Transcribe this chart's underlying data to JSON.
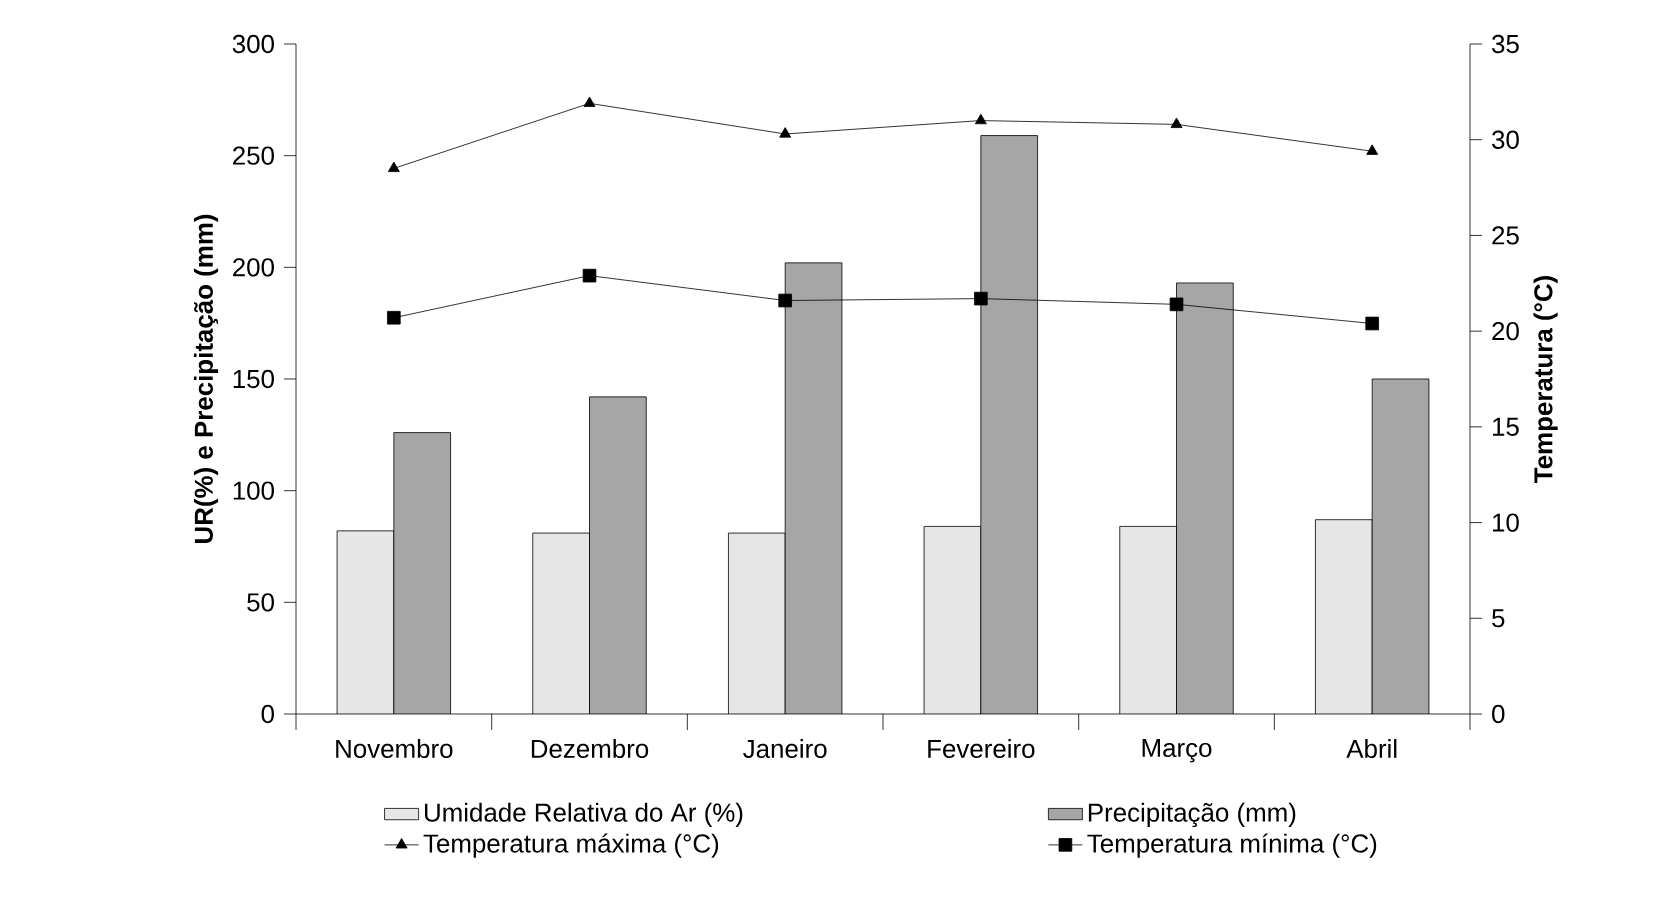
{
  "chart_data": {
    "type": "bar",
    "ylabel": "UR(%) e Precipitação (mm)",
    "y2label": "Temperatura (°C)",
    "categories": [
      "Novembro",
      "Dezembro",
      "Janeiro",
      "Fevereiro",
      "Março",
      "Abril"
    ],
    "series": [
      {
        "name": "Umidade Relativa do Ar (%)",
        "color": "#e6e6e6",
        "values": [
          82,
          81,
          81,
          84,
          84,
          87
        ]
      },
      {
        "name": "Precipitação (mm)",
        "color": "#a6a6a6",
        "values": [
          126,
          142,
          202,
          259,
          193,
          150
        ]
      },
      {
        "name": "Temperatura máxima (°C)",
        "type": "line",
        "axis": "y2",
        "color": "#000000",
        "marker": "triangle",
        "line_style": "solid",
        "values": [
          28.5,
          31.9,
          30.3,
          31.0,
          30.8,
          29.4
        ]
      },
      {
        "name": "Temperatura mínima (°C)",
        "type": "line",
        "axis": "y2",
        "color": "#000000",
        "marker": "square",
        "line_style": "solid",
        "values": [
          20.7,
          22.9,
          21.6,
          21.7,
          21.4,
          20.4
        ]
      }
    ],
    "ylim": [
      0,
      300
    ],
    "yticks": [
      0,
      50,
      100,
      150,
      200,
      250,
      300
    ],
    "y2lim": [
      0,
      35
    ],
    "y2ticks": [
      0,
      5,
      10,
      15,
      20,
      25,
      30,
      35
    ],
    "grid": false,
    "legend": "bottom"
  }
}
